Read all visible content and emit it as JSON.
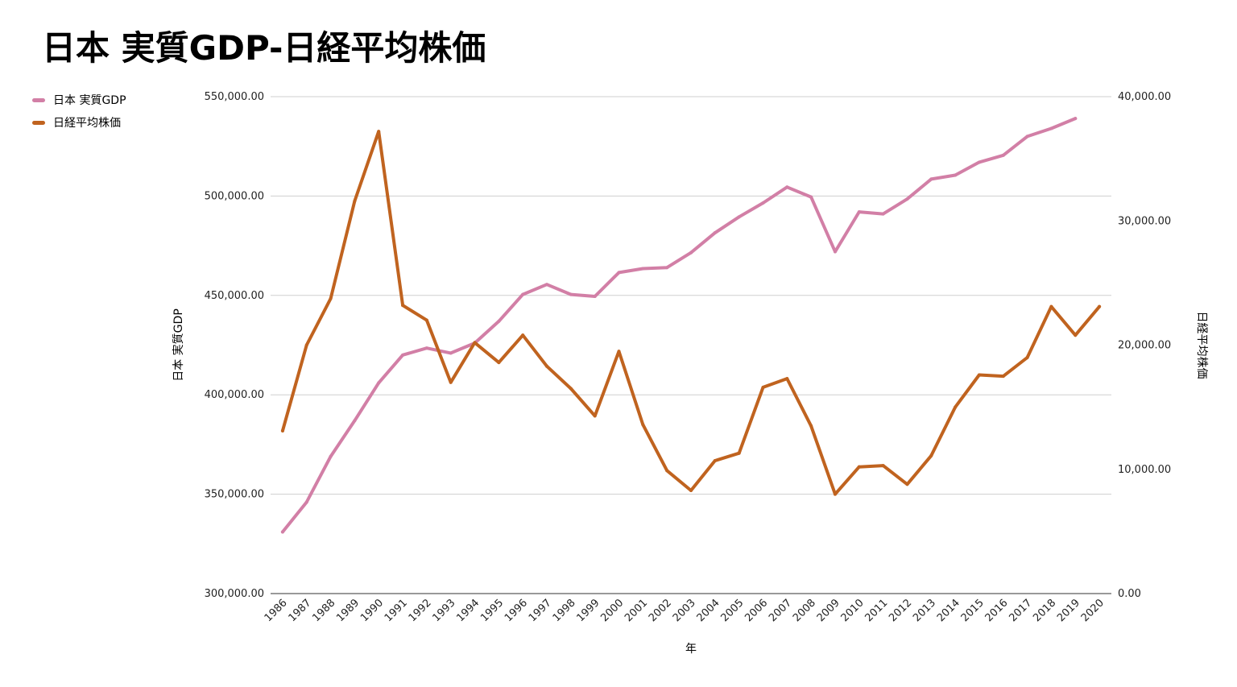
{
  "title": "日本 実質GDP-日経平均株価",
  "chart_data": {
    "type": "line",
    "title": "日本 実質GDP-日経平均株価",
    "xlabel": "年",
    "ylabel": "日本 実質GDP",
    "y2label": "日経平均株価",
    "ylim": [
      300000,
      550000
    ],
    "y2lim": [
      0,
      40000
    ],
    "grid": true,
    "legend_position": "top-left",
    "x": [
      "1986",
      "1987",
      "1988",
      "1989",
      "1990",
      "1991",
      "1992",
      "1993",
      "1994",
      "1995",
      "1996",
      "1997",
      "1998",
      "1999",
      "2000",
      "2001",
      "2002",
      "2003",
      "2004",
      "2005",
      "2006",
      "2007",
      "2008",
      "2009",
      "2010",
      "2011",
      "2012",
      "2013",
      "2014",
      "2015",
      "2016",
      "2017",
      "2018",
      "2019",
      "2020"
    ],
    "y_ticks": [
      "300,000.00",
      "350,000.00",
      "400,000.00",
      "450,000.00",
      "500,000.00",
      "550,000.00"
    ],
    "y2_ticks": [
      "0.00",
      "10,000.00",
      "20,000.00",
      "30,000.00",
      "40,000.00"
    ],
    "series": [
      {
        "name": "日本 実質GDP",
        "axis": "left",
        "color": "#d27fa6",
        "values": [
          331000,
          346000,
          369000,
          387000,
          406000,
          420000,
          423500,
          421000,
          426000,
          437000,
          450500,
          455500,
          450500,
          449500,
          461500,
          463500,
          464000,
          471500,
          481500,
          489500,
          496500,
          504500,
          499500,
          472000,
          492000,
          491000,
          498500,
          508500,
          510500,
          517000,
          520500,
          530000,
          534000,
          539000,
          null
        ]
      },
      {
        "name": "日経平均株価",
        "axis": "right",
        "color": "#c0631f",
        "values": [
          13100,
          20000,
          23750,
          31600,
          37200,
          23200,
          22000,
          17000,
          20200,
          18600,
          20800,
          18300,
          16500,
          14300,
          19500,
          13600,
          9900,
          8300,
          10700,
          11300,
          16600,
          17300,
          13500,
          8000,
          10200,
          10300,
          8800,
          11100,
          15000,
          17600,
          17500,
          19000,
          23100,
          20800,
          23100
        ]
      }
    ]
  }
}
